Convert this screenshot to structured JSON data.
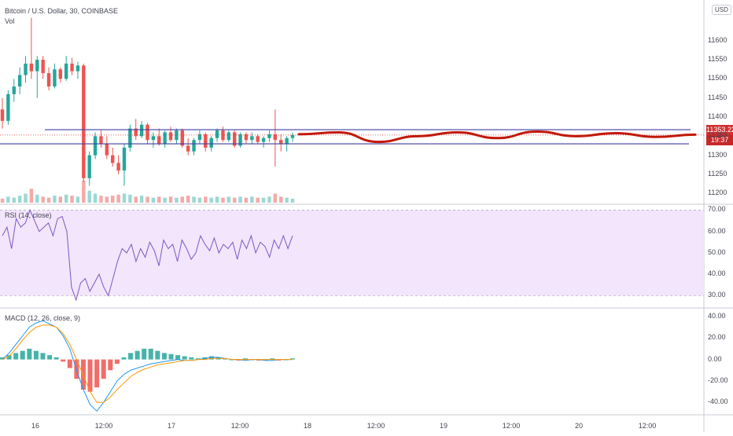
{
  "header": {
    "symbol_title": "Bitcoin / U.S. Dollar, 30, COINBASE",
    "vol_label": "Vol",
    "currency_button": "USD"
  },
  "price_badges": {
    "last_price": "11353.22",
    "countdown": "19:37",
    "last_price_color": "#d32f2f",
    "countdown_color": "#c62828"
  },
  "panes": {
    "rsi_title": "RSI (14, close)",
    "macd_title": "MACD (12, 26, close, 9)"
  },
  "x_axis_labels": [
    "16",
    "12:00",
    "17",
    "12:00",
    "18",
    "12:00",
    "19",
    "12:00",
    "20",
    "12:00"
  ],
  "chart_data": [
    {
      "type": "candlestick",
      "title": "Bitcoin / U.S. Dollar, 30, COINBASE",
      "y_ticks": [
        11600,
        11550,
        11500,
        11450,
        11400,
        11350,
        11300,
        11250,
        11200
      ],
      "ylim": [
        11180,
        11690
      ],
      "candles": [
        [
          11420,
          11450,
          11370,
          11390
        ],
        [
          11390,
          11470,
          11380,
          11460
        ],
        [
          11460,
          11500,
          11440,
          11480
        ],
        [
          11480,
          11530,
          11460,
          11510
        ],
        [
          11510,
          11560,
          11490,
          11540
        ],
        [
          11540,
          11660,
          11500,
          11520
        ],
        [
          11520,
          11560,
          11450,
          11550
        ],
        [
          11550,
          11560,
          11500,
          11515
        ],
        [
          11515,
          11530,
          11470,
          11480
        ],
        [
          11480,
          11540,
          11475,
          11525
        ],
        [
          11525,
          11530,
          11490,
          11500
        ],
        [
          11500,
          11560,
          11495,
          11540
        ],
        [
          11540,
          11555,
          11510,
          11520
        ],
        [
          11520,
          11545,
          11500,
          11535
        ],
        [
          11535,
          11540,
          11230,
          11240
        ],
        [
          11240,
          11310,
          11220,
          11300
        ],
        [
          11300,
          11360,
          11290,
          11350
        ],
        [
          11350,
          11365,
          11320,
          11330
        ],
        [
          11330,
          11350,
          11290,
          11300
        ],
        [
          11300,
          11320,
          11270,
          11280
        ],
        [
          11280,
          11300,
          11250,
          11260
        ],
        [
          11260,
          11330,
          11220,
          11320
        ],
        [
          11320,
          11380,
          11310,
          11370
        ],
        [
          11370,
          11395,
          11340,
          11350
        ],
        [
          11350,
          11390,
          11345,
          11380
        ],
        [
          11380,
          11385,
          11330,
          11340
        ],
        [
          11340,
          11360,
          11320,
          11350
        ],
        [
          11350,
          11370,
          11325,
          11330
        ],
        [
          11330,
          11365,
          11320,
          11360
        ],
        [
          11360,
          11375,
          11335,
          11340
        ],
        [
          11340,
          11370,
          11330,
          11365
        ],
        [
          11365,
          11370,
          11320,
          11325
        ],
        [
          11325,
          11345,
          11300,
          11310
        ],
        [
          11310,
          11345,
          11300,
          11340
        ],
        [
          11340,
          11365,
          11330,
          11355
        ],
        [
          11355,
          11360,
          11310,
          11320
        ],
        [
          11320,
          11350,
          11310,
          11345
        ],
        [
          11345,
          11370,
          11335,
          11365
        ],
        [
          11365,
          11375,
          11335,
          11340
        ],
        [
          11340,
          11365,
          11335,
          11360
        ],
        [
          11360,
          11365,
          11320,
          11325
        ],
        [
          11325,
          11360,
          11320,
          11355
        ],
        [
          11355,
          11360,
          11330,
          11340
        ],
        [
          11340,
          11360,
          11330,
          11350
        ],
        [
          11350,
          11355,
          11330,
          11335
        ],
        [
          11335,
          11350,
          11320,
          11345
        ],
        [
          11345,
          11365,
          11335,
          11355
        ],
        [
          11355,
          11420,
          11270,
          11340
        ],
        [
          11340,
          11355,
          11310,
          11330
        ],
        [
          11330,
          11350,
          11310,
          11345
        ],
        [
          11345,
          11360,
          11335,
          11353
        ]
      ],
      "volumes": [
        4,
        6,
        5,
        7,
        9,
        14,
        8,
        6,
        5,
        7,
        6,
        8,
        7,
        6,
        22,
        12,
        9,
        7,
        6,
        7,
        8,
        9,
        8,
        6,
        7,
        6,
        5,
        6,
        5,
        6,
        5,
        6,
        7,
        6,
        5,
        6,
        5,
        6,
        5,
        6,
        5,
        6,
        5,
        6,
        5,
        5,
        6,
        9,
        6,
        5,
        4
      ],
      "horizontal_lines": [
        11367,
        11330
      ],
      "projection_path": [
        [
          0,
          11355
        ],
        [
          0.1,
          11360
        ],
        [
          0.2,
          11335
        ],
        [
          0.3,
          11350
        ],
        [
          0.4,
          11360
        ],
        [
          0.5,
          11345
        ],
        [
          0.6,
          11362
        ],
        [
          0.7,
          11350
        ],
        [
          0.8,
          11358
        ],
        [
          0.9,
          11348
        ],
        [
          1.0,
          11354
        ]
      ],
      "colors": {
        "up": "#26a69a",
        "down": "#ef5350",
        "hline": "#3f3fa0",
        "projection": "#c21807"
      }
    },
    {
      "type": "line",
      "title": "RSI (14, close)",
      "y_ticks": [
        70,
        60,
        50,
        40,
        30
      ],
      "ylim": [
        25,
        72
      ],
      "band": [
        30,
        70
      ],
      "values": [
        58,
        62,
        52,
        66,
        62,
        64,
        70,
        65,
        60,
        62,
        64,
        58,
        66,
        67,
        60,
        34,
        28,
        36,
        38,
        32,
        36,
        40,
        34,
        30,
        38,
        46,
        52,
        50,
        54,
        46,
        52,
        48,
        55,
        51,
        44,
        56,
        52,
        54,
        46,
        56,
        52,
        47,
        50,
        58,
        54,
        51,
        57,
        50,
        54,
        52,
        55,
        47,
        56,
        52,
        58,
        50,
        55,
        53,
        48,
        56,
        52,
        58,
        52,
        58
      ],
      "colors": {
        "line": "#7e57c2",
        "band_fill": "#f3e5fb"
      }
    },
    {
      "type": "line",
      "title": "MACD (12, 26, close, 9)",
      "y_ticks": [
        40,
        20,
        0,
        -20,
        -40
      ],
      "ylim": [
        -50,
        45
      ],
      "macd": [
        0,
        6,
        14,
        22,
        30,
        34,
        36,
        33,
        30,
        22,
        10,
        -10,
        -28,
        -42,
        -48,
        -40,
        -30,
        -20,
        -14,
        -10,
        -8,
        -6,
        -4,
        -3,
        -2,
        -1,
        0,
        -1,
        -1,
        0,
        1,
        2,
        2,
        1,
        0,
        0,
        -1,
        0,
        0,
        -1,
        -1,
        0,
        0,
        0
      ],
      "signal": [
        0,
        3,
        10,
        18,
        25,
        30,
        32,
        32,
        30,
        24,
        14,
        0,
        -15,
        -30,
        -40,
        -40,
        -35,
        -28,
        -22,
        -16,
        -12,
        -9,
        -7,
        -5,
        -4,
        -3,
        -2,
        -1,
        -1,
        0,
        0,
        1,
        1,
        1,
        0,
        0,
        0,
        0,
        0,
        0,
        0,
        0,
        0,
        0
      ],
      "histogram": [
        2,
        4,
        6,
        8,
        10,
        8,
        6,
        4,
        2,
        -2,
        -8,
        -18,
        -28,
        -30,
        -26,
        -18,
        -10,
        -4,
        2,
        6,
        8,
        10,
        10,
        8,
        6,
        5,
        4,
        3,
        2,
        1,
        2,
        3,
        2,
        1,
        0,
        -1,
        1,
        0,
        -1,
        0,
        1,
        -1,
        0,
        1
      ],
      "colors": {
        "macd": "#2196f3",
        "signal": "#ff9800",
        "hist_up": "#26a69a",
        "hist_down": "#ef5350"
      }
    }
  ]
}
